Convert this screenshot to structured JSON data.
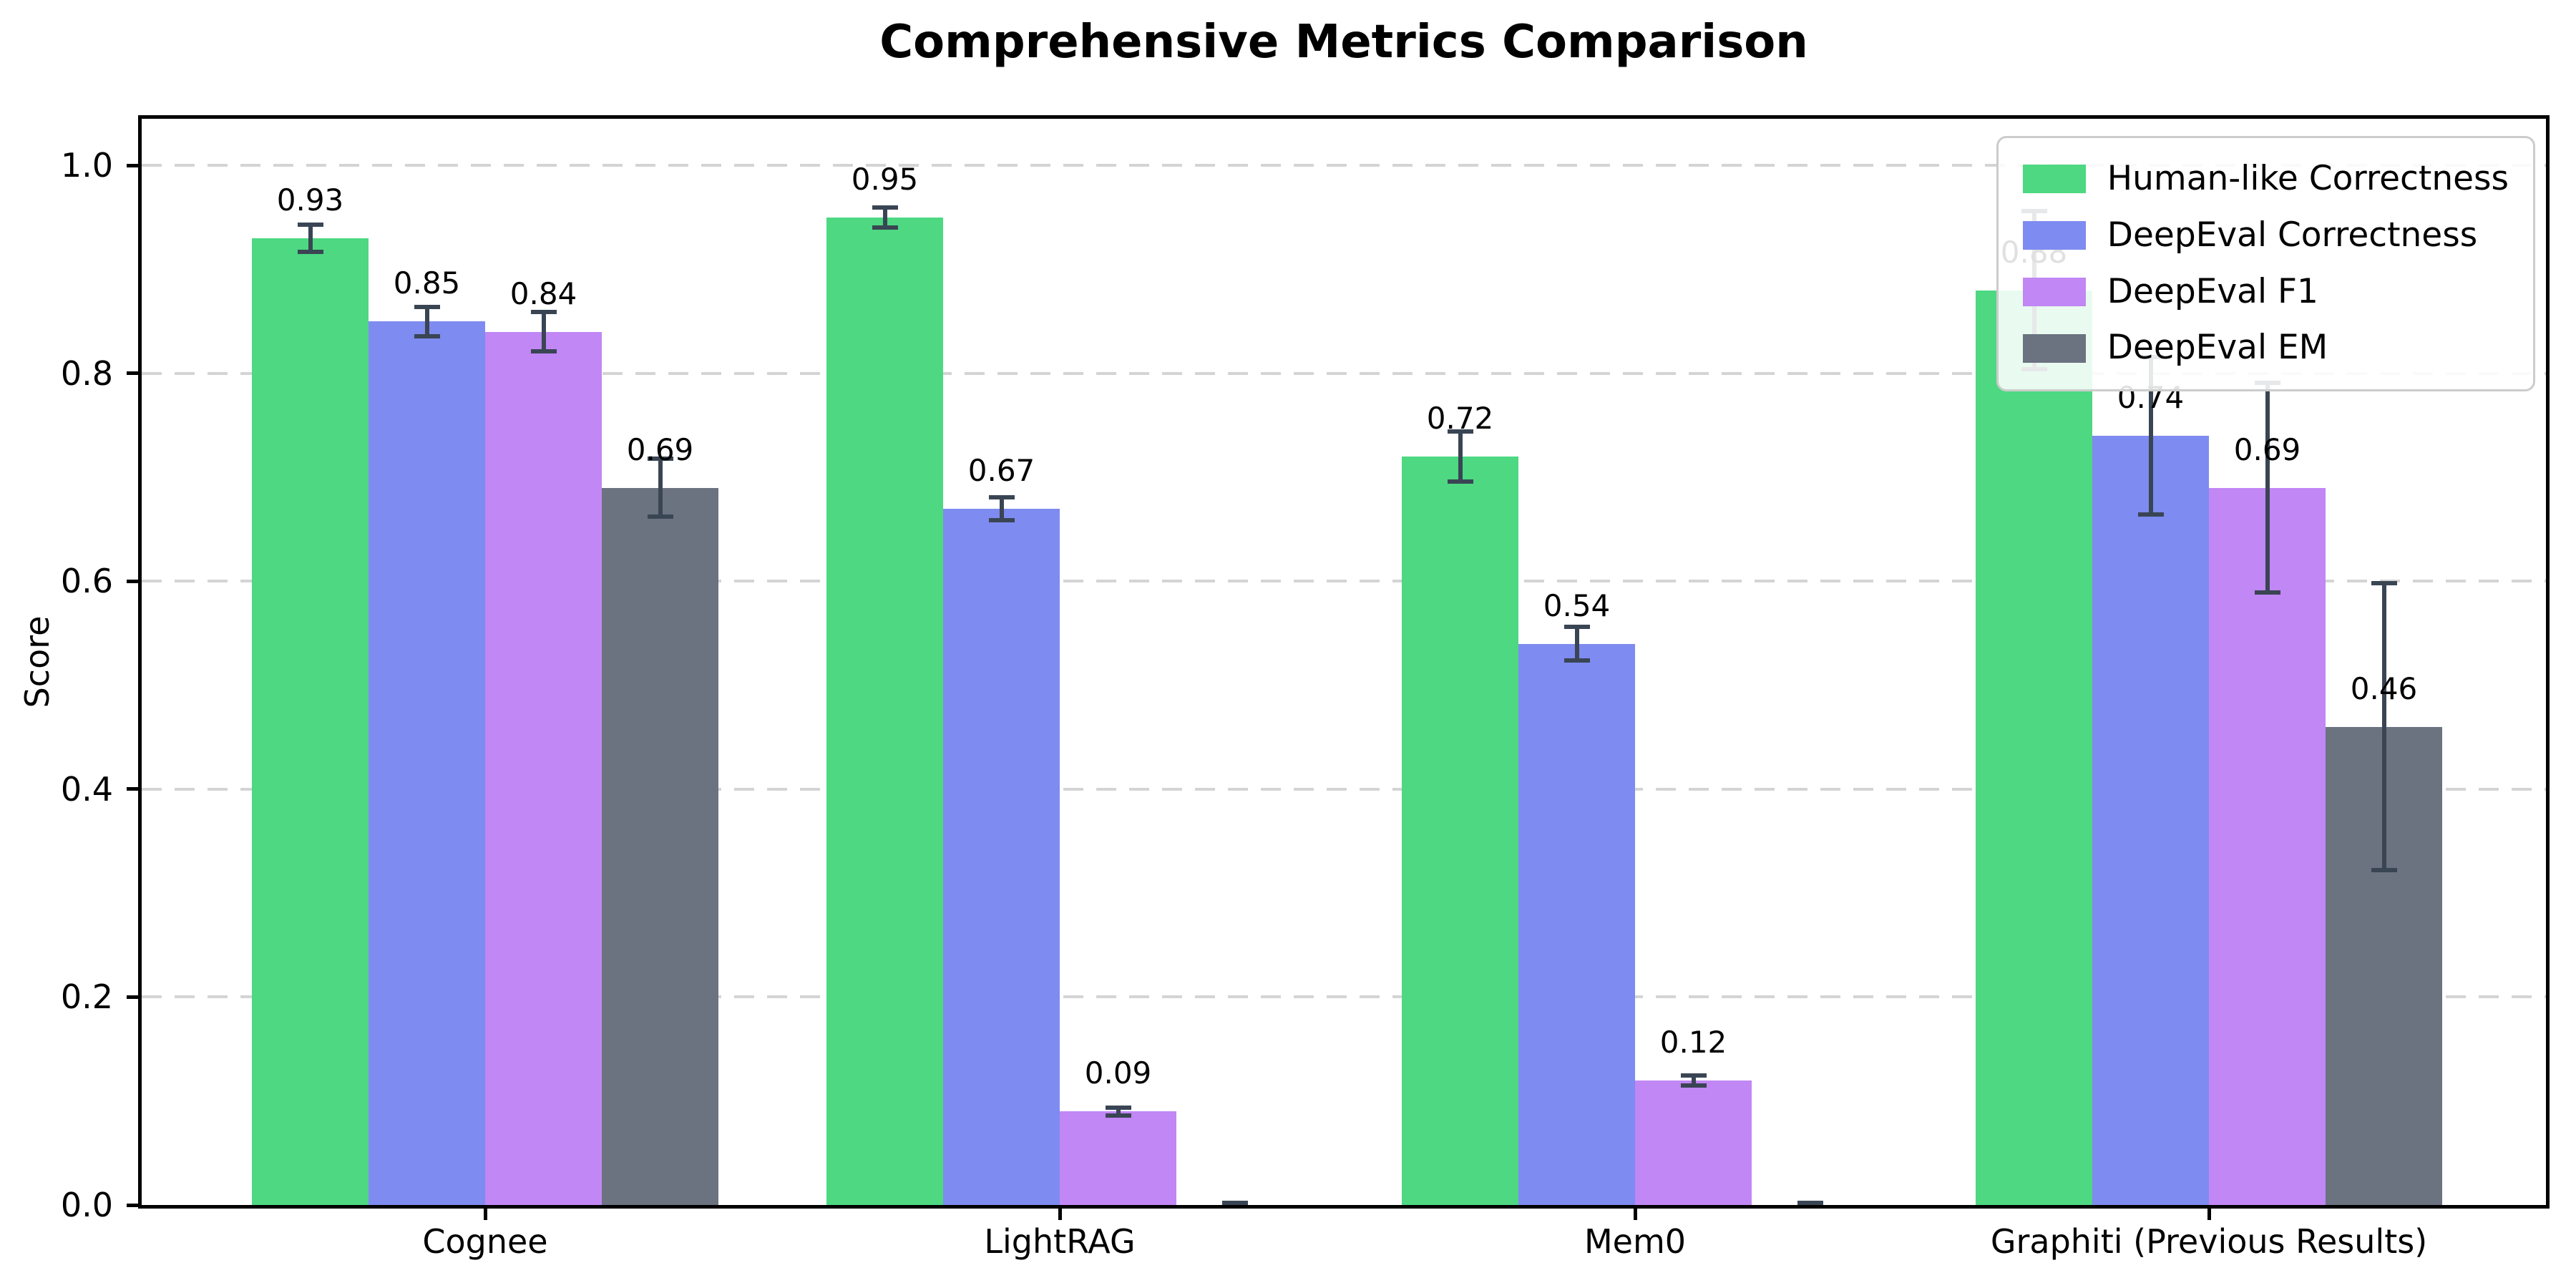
{
  "chart_data": {
    "type": "bar",
    "title": "Comprehensive Metrics Comparison",
    "ylabel": "Score",
    "xlabel": "",
    "categories": [
      "Cognee",
      "LightRAG",
      "Mem0",
      "Graphiti (Previous Results)"
    ],
    "series": [
      {
        "name": "Human-like Correctness",
        "color": "#4dd881",
        "values": [
          0.93,
          0.95,
          0.72,
          0.88
        ],
        "errors": [
          0.015,
          0.012,
          0.026,
          0.078
        ],
        "labels": [
          "0.93",
          "0.95",
          "0.72",
          "0.88"
        ]
      },
      {
        "name": "DeepEval Correctness",
        "color": "#7e8bf0",
        "values": [
          0.85,
          0.67,
          0.54,
          0.74
        ],
        "errors": [
          0.016,
          0.013,
          0.018,
          0.078
        ],
        "labels": [
          "0.85",
          "0.67",
          "0.54",
          "0.74"
        ]
      },
      {
        "name": "DeepEval F1",
        "color": "#c187f4",
        "values": [
          0.84,
          0.09,
          0.12,
          0.69
        ],
        "errors": [
          0.021,
          0.006,
          0.007,
          0.103
        ],
        "labels": [
          "0.84",
          "0.09",
          "0.12",
          "0.69"
        ]
      },
      {
        "name": "DeepEval EM",
        "color": "#6b7280",
        "values": [
          0.69,
          0.0,
          0.0,
          0.46
        ],
        "errors": [
          0.03,
          0.004,
          0.004,
          0.14
        ],
        "labels": [
          "0.69",
          null,
          null,
          "0.46"
        ]
      }
    ],
    "yticks": [
      "0.0",
      "0.2",
      "0.4",
      "0.6",
      "0.8",
      "1.0"
    ],
    "ytick_values": [
      0.0,
      0.2,
      0.4,
      0.6,
      0.8,
      1.0
    ],
    "ylim": [
      0,
      1.045
    ],
    "grid": "horizontal-dashed",
    "legend_position": "upper-right",
    "style": {
      "background": "#ffffff",
      "error_bar_color": "#3a4554",
      "grid_color": "#d4d4d4",
      "axis_color": "#000000",
      "text_color": "#000000"
    }
  }
}
